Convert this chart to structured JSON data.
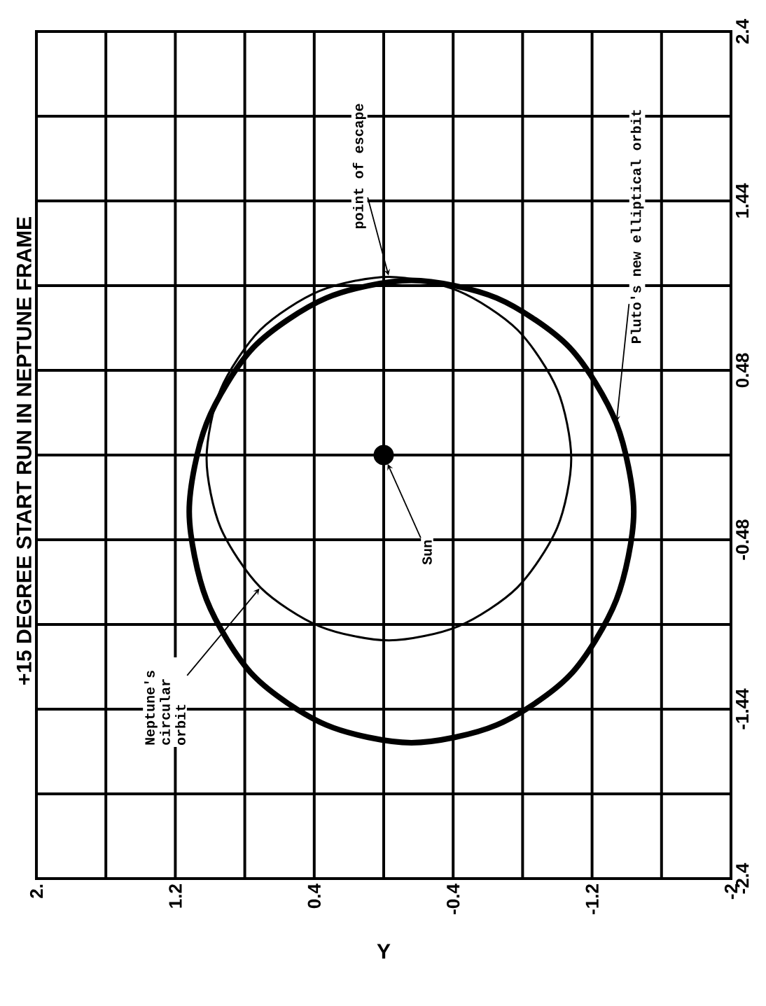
{
  "chart_data": {
    "type": "scatter",
    "title": "+15 DEGREE START RUN IN NEPTUNE FRAME",
    "xlabel": "Y",
    "xlim": [
      2,
      -2
    ],
    "xticks": [
      {
        "value": 2,
        "label": "2."
      },
      {
        "value": 1.6,
        "label": null
      },
      1.2,
      {
        "value": 0.8,
        "label": null
      },
      0.4,
      {
        "value": 0,
        "label": null
      },
      -0.4,
      {
        "value": -0.8,
        "label": null
      },
      -1.2,
      {
        "value": -1.6,
        "label": null
      },
      -2
    ],
    "ylim": [
      -2.4,
      2.4
    ],
    "yticks": [
      -2.4,
      {
        "value": -1.92,
        "label": null
      },
      -1.44,
      {
        "value": -0.96,
        "label": null
      },
      -0.48,
      {
        "value": 0,
        "label": null
      },
      0.48,
      {
        "value": 0.96,
        "label": null
      },
      1.44,
      {
        "value": 1.92,
        "label": null
      },
      2.4
    ],
    "grid": true,
    "series": [
      {
        "name": "Sun",
        "color": "#000000",
        "marker": "circle",
        "x": [
          0
        ],
        "values": [
          0
        ]
      }
    ],
    "annotations": [
      "Neptune's circular orbit",
      "Pluto's new elliptical orbit",
      "point of escape"
    ]
  }
}
